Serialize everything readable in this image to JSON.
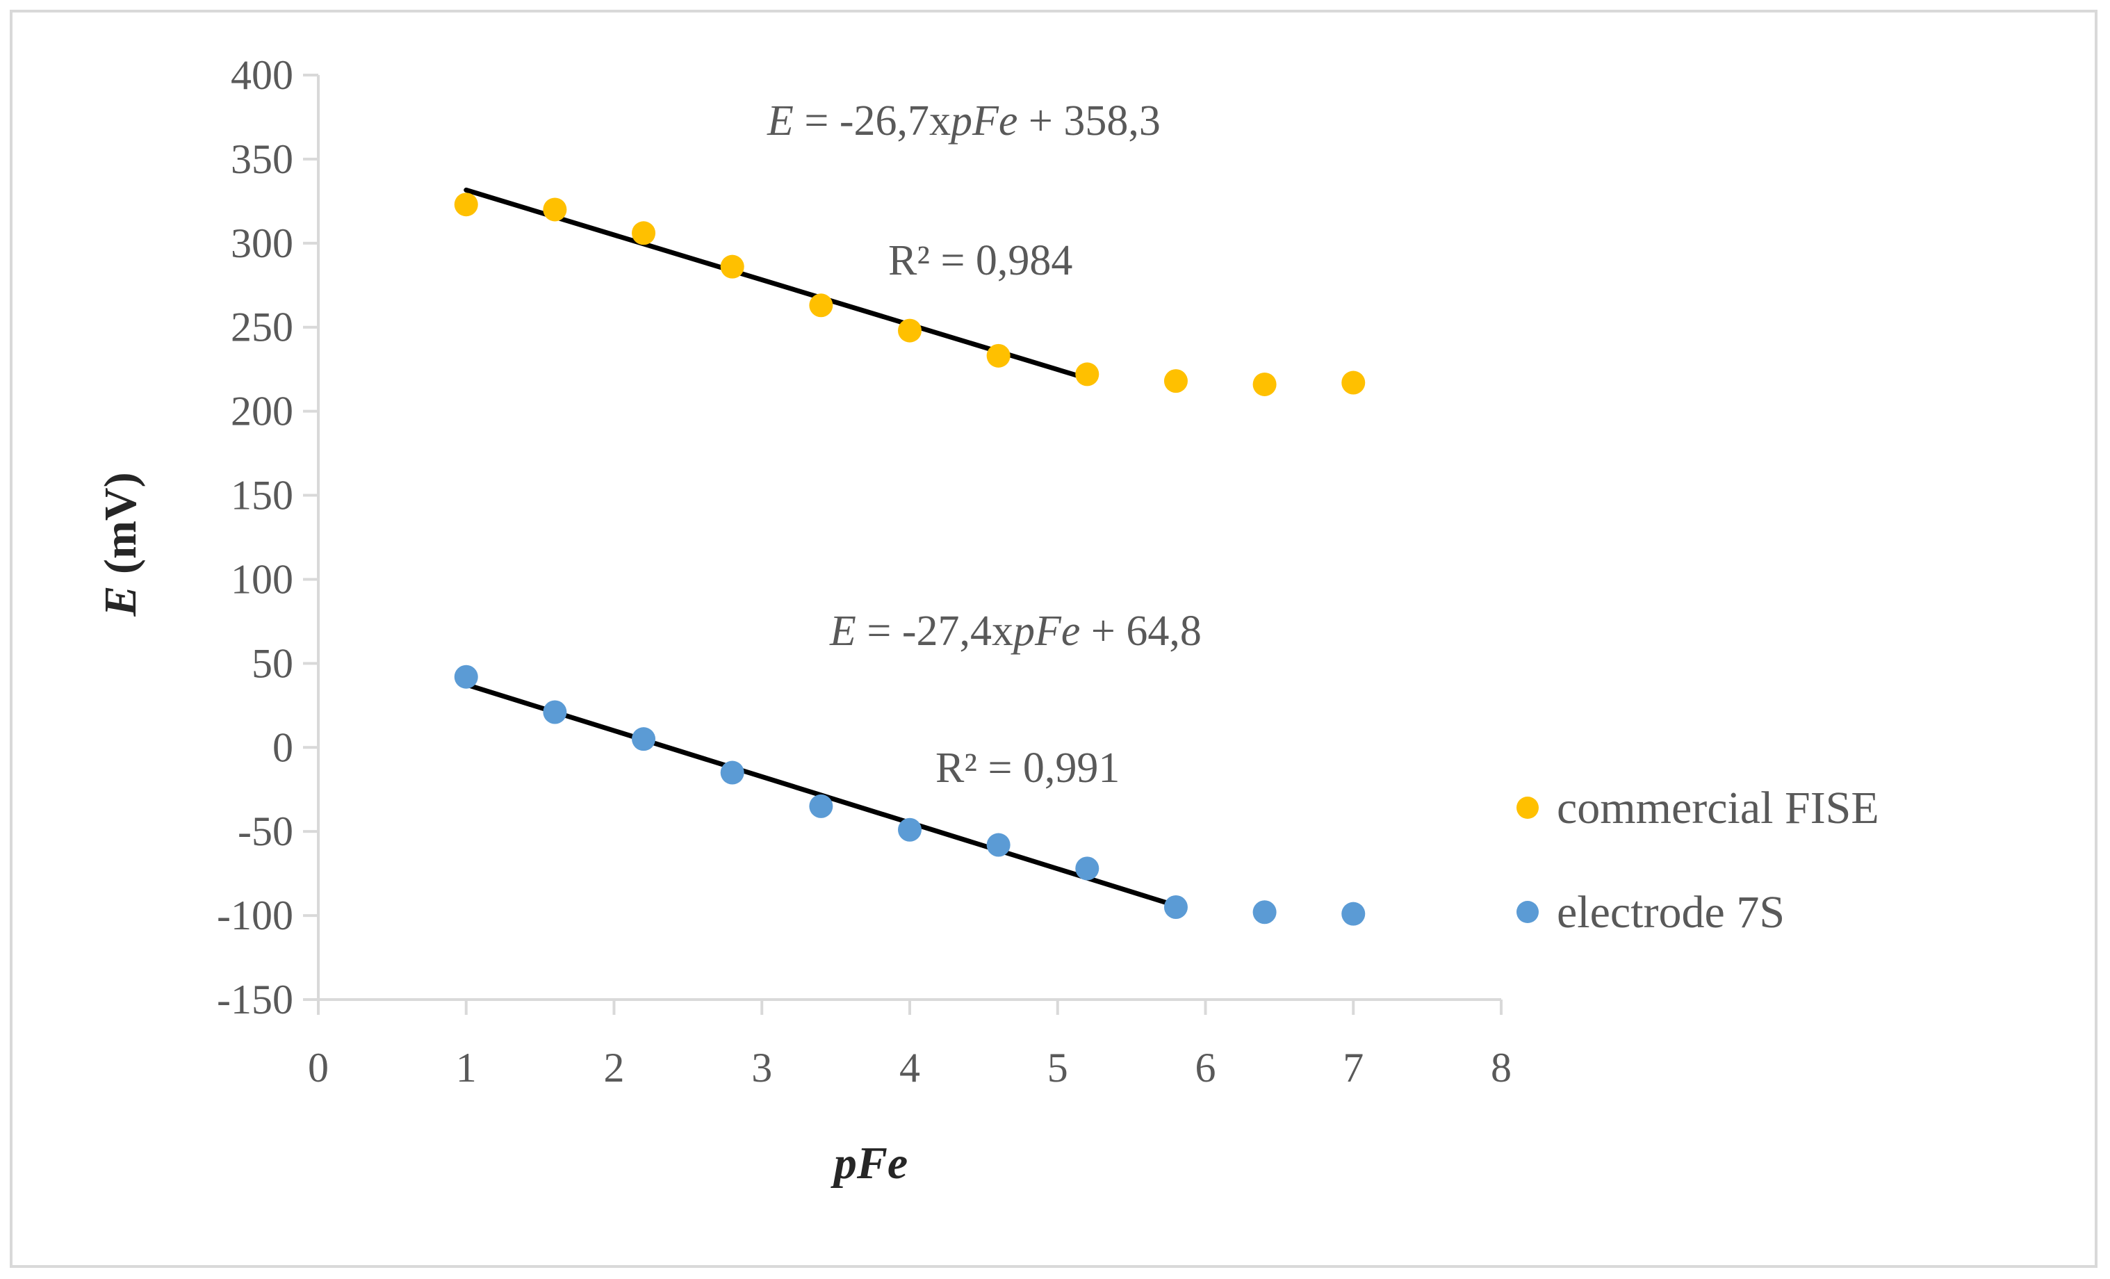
{
  "chart_data": {
    "type": "scatter",
    "title": "",
    "xlabel": "pFe",
    "ylabel_italic": "E",
    "ylabel_rest": " (mV)",
    "xlim": [
      0,
      8
    ],
    "ylim": [
      -150,
      400
    ],
    "x_ticks": [
      0,
      1,
      2,
      3,
      4,
      5,
      6,
      7,
      8
    ],
    "y_ticks": [
      -150,
      -100,
      -50,
      0,
      50,
      100,
      150,
      200,
      250,
      300,
      350,
      400
    ],
    "grid": false,
    "legend_position": "right",
    "series": [
      {
        "name": "commercial FISE",
        "color": "#FFC000",
        "x": [
          1.0,
          1.6,
          2.2,
          2.8,
          3.4,
          4.0,
          4.6,
          5.2,
          5.8,
          6.4,
          7.0
        ],
        "y": [
          323,
          320,
          306,
          286,
          263,
          248,
          233,
          222,
          218,
          216,
          217
        ],
        "trendline": {
          "slope": -26.7,
          "intercept": 358.3,
          "x_range": [
            1.0,
            5.2
          ],
          "color": "#000000",
          "equation": {
            "e": "E",
            "part1": " = -26,7x",
            "pfe": "pFe",
            "part2": " + 358,3"
          },
          "r2_label": "R² = 0,984"
        }
      },
      {
        "name": "electrode 7S",
        "color": "#5B9BD5",
        "x": [
          1.0,
          1.6,
          2.2,
          2.8,
          3.4,
          4.0,
          4.6,
          5.2,
          5.8,
          6.4,
          7.0
        ],
        "y": [
          42,
          21,
          5,
          -15,
          -35,
          -49,
          -58,
          -72,
          -95,
          -98,
          -99
        ],
        "trendline": {
          "slope": -27.4,
          "intercept": 64.8,
          "x_range": [
            1.0,
            5.8
          ],
          "color": "#000000",
          "equation": {
            "e": "E",
            "part1": " = -27,4x",
            "pfe": "pFe",
            "part2": " + 64,8"
          },
          "r2_label": "R² = 0,991"
        }
      }
    ]
  }
}
